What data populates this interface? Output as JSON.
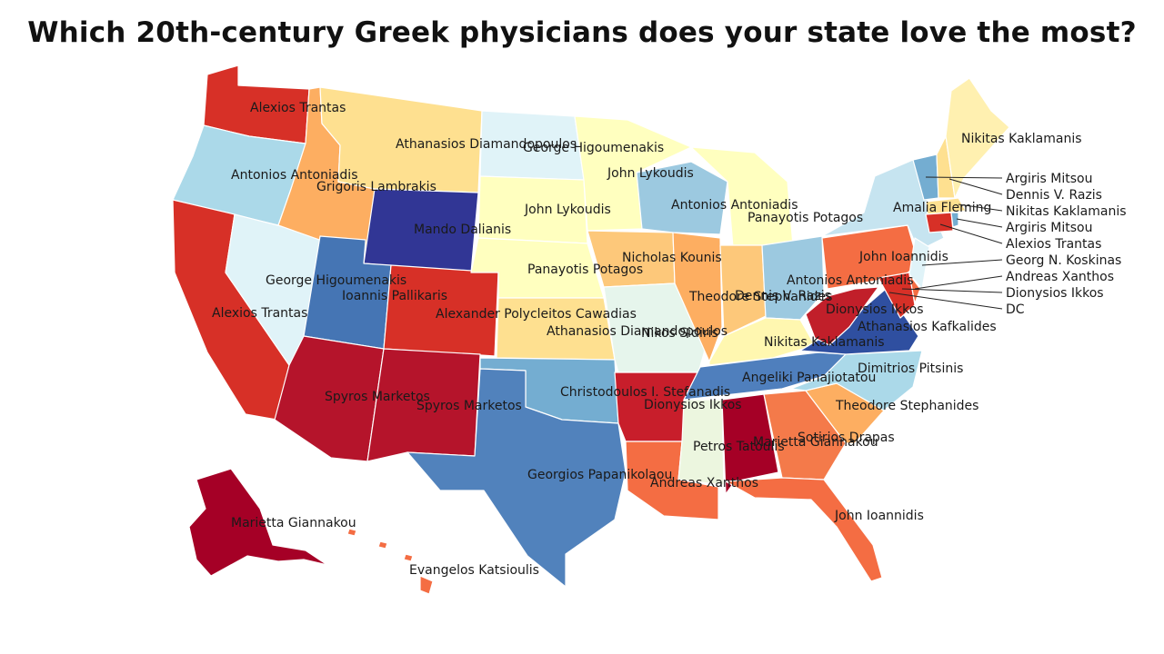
{
  "title": "Which 20th-century Greek physicians does your state love the most?",
  "palette": {
    "dark_red": "#a50026",
    "red": "#d73027",
    "orange_red": "#f46d43",
    "orange": "#fdae61",
    "yellow": "#fee090",
    "light_yellow": "#ffffbf",
    "pale_cyan": "#e0f3f8",
    "light_blue": "#abd9e9",
    "mid_blue": "#74add1",
    "blue": "#4575b4",
    "dark_blue": "#313695"
  },
  "labels": {
    "wa": "Alexios Trantas",
    "mt": "Athanasios Diamandopoulos",
    "nd": "George Higoumenakis",
    "mn": "John Lykoudis",
    "or": "Antonios Antoniadis",
    "id": "Grigoris Lambrakis",
    "wy": "Mando Dalianis",
    "sd": "John Lykoudis",
    "wi": "Antonios Antoniadis",
    "mi": "Panayotis Potagos",
    "nv": "George Higoumenakis",
    "ut": "Ioannis Pallikaris",
    "ca": "Alexios Trantas",
    "co": "Alexander Polycleitos Cawadias",
    "ne": "Panayotis Potagos",
    "ia": "Nicholas Kounis",
    "il": "Theodore Stephanides",
    "in": "Dennis V. Razis",
    "oh": "Antonios Antoniadis",
    "ks": "Athanasios Diamandopoulos",
    "mo": "Nikos Sidiris",
    "ky": "Nikitas Kaklamanis",
    "wv": "Dionysios Ikkos",
    "va": "Athanasios Kafkalides",
    "pa": "John Ioannidis",
    "ny": "Amalia Fleming",
    "me": "Nikitas Kaklamanis",
    "tn": "Angeliki Panajiotatou",
    "nc": "Dimitrios Pitsinis",
    "ok": "Christodoulos I. Stefanadis",
    "ar": "Dionysios Ikkos",
    "sc": "Theodore Stephanides",
    "az": "Spyros Marketos",
    "nm": "Spyros Marketos",
    "ms": "Petros Tatoulis",
    "al": "Marietta Giannakou",
    "ga": "Sotirios Drapas",
    "tx": "Georgios Papanikolaou",
    "la": "Andreas Xanthos",
    "fl": "John Ioannidis",
    "ak": "Marietta Giannakou",
    "hi": "Evangelos Katsioulis"
  },
  "callouts": [
    {
      "state": "VT",
      "label": "Argiris Mitsou"
    },
    {
      "state": "NH",
      "label": "Dennis V. Razis"
    },
    {
      "state": "MA",
      "label": "Nikitas Kaklamanis"
    },
    {
      "state": "RI",
      "label": "Argiris Mitsou"
    },
    {
      "state": "CT",
      "label": "Alexios Trantas"
    },
    {
      "state": "NJ",
      "label": "Georg N. Koskinas"
    },
    {
      "state": "DE",
      "label": "Andreas Xanthos"
    },
    {
      "state": "MD",
      "label": "Dionysios Ikkos"
    },
    {
      "state": "DC",
      "label": "DC"
    }
  ]
}
